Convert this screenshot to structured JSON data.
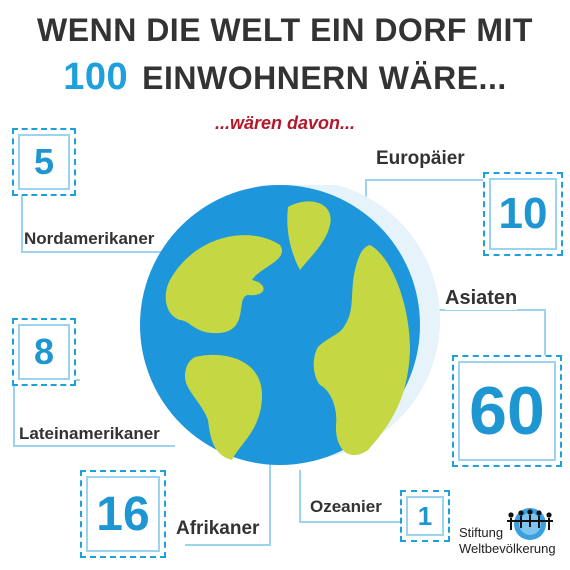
{
  "title": {
    "line1": "WENN DIE WELT EIN DORF MIT",
    "number": "100",
    "line2_rest": "EINWOHNERN WÄRE...",
    "subtitle": "...wären davon..."
  },
  "groups": [
    {
      "id": "nordamerikaner",
      "label": "Nordamerikaner",
      "value": "5"
    },
    {
      "id": "europaeer",
      "label": "Europäier",
      "value": "10"
    },
    {
      "id": "asiaten",
      "label": "Asiaten",
      "value": "60"
    },
    {
      "id": "lateinamerikaner",
      "label": "Lateinamerikaner",
      "value": "8"
    },
    {
      "id": "afrikaner",
      "label": "Afrikaner",
      "value": "16"
    },
    {
      "id": "ozeanier",
      "label": "Ozeanier",
      "value": "1"
    }
  ],
  "logo": {
    "line1": "Stiftung",
    "line2": "Weltbevölkerung"
  },
  "colors": {
    "accent": "#1ea0dc",
    "title": "#333333",
    "subtitle": "#b2182b",
    "ocean": "#1e96dc",
    "land": "#c5d843"
  }
}
